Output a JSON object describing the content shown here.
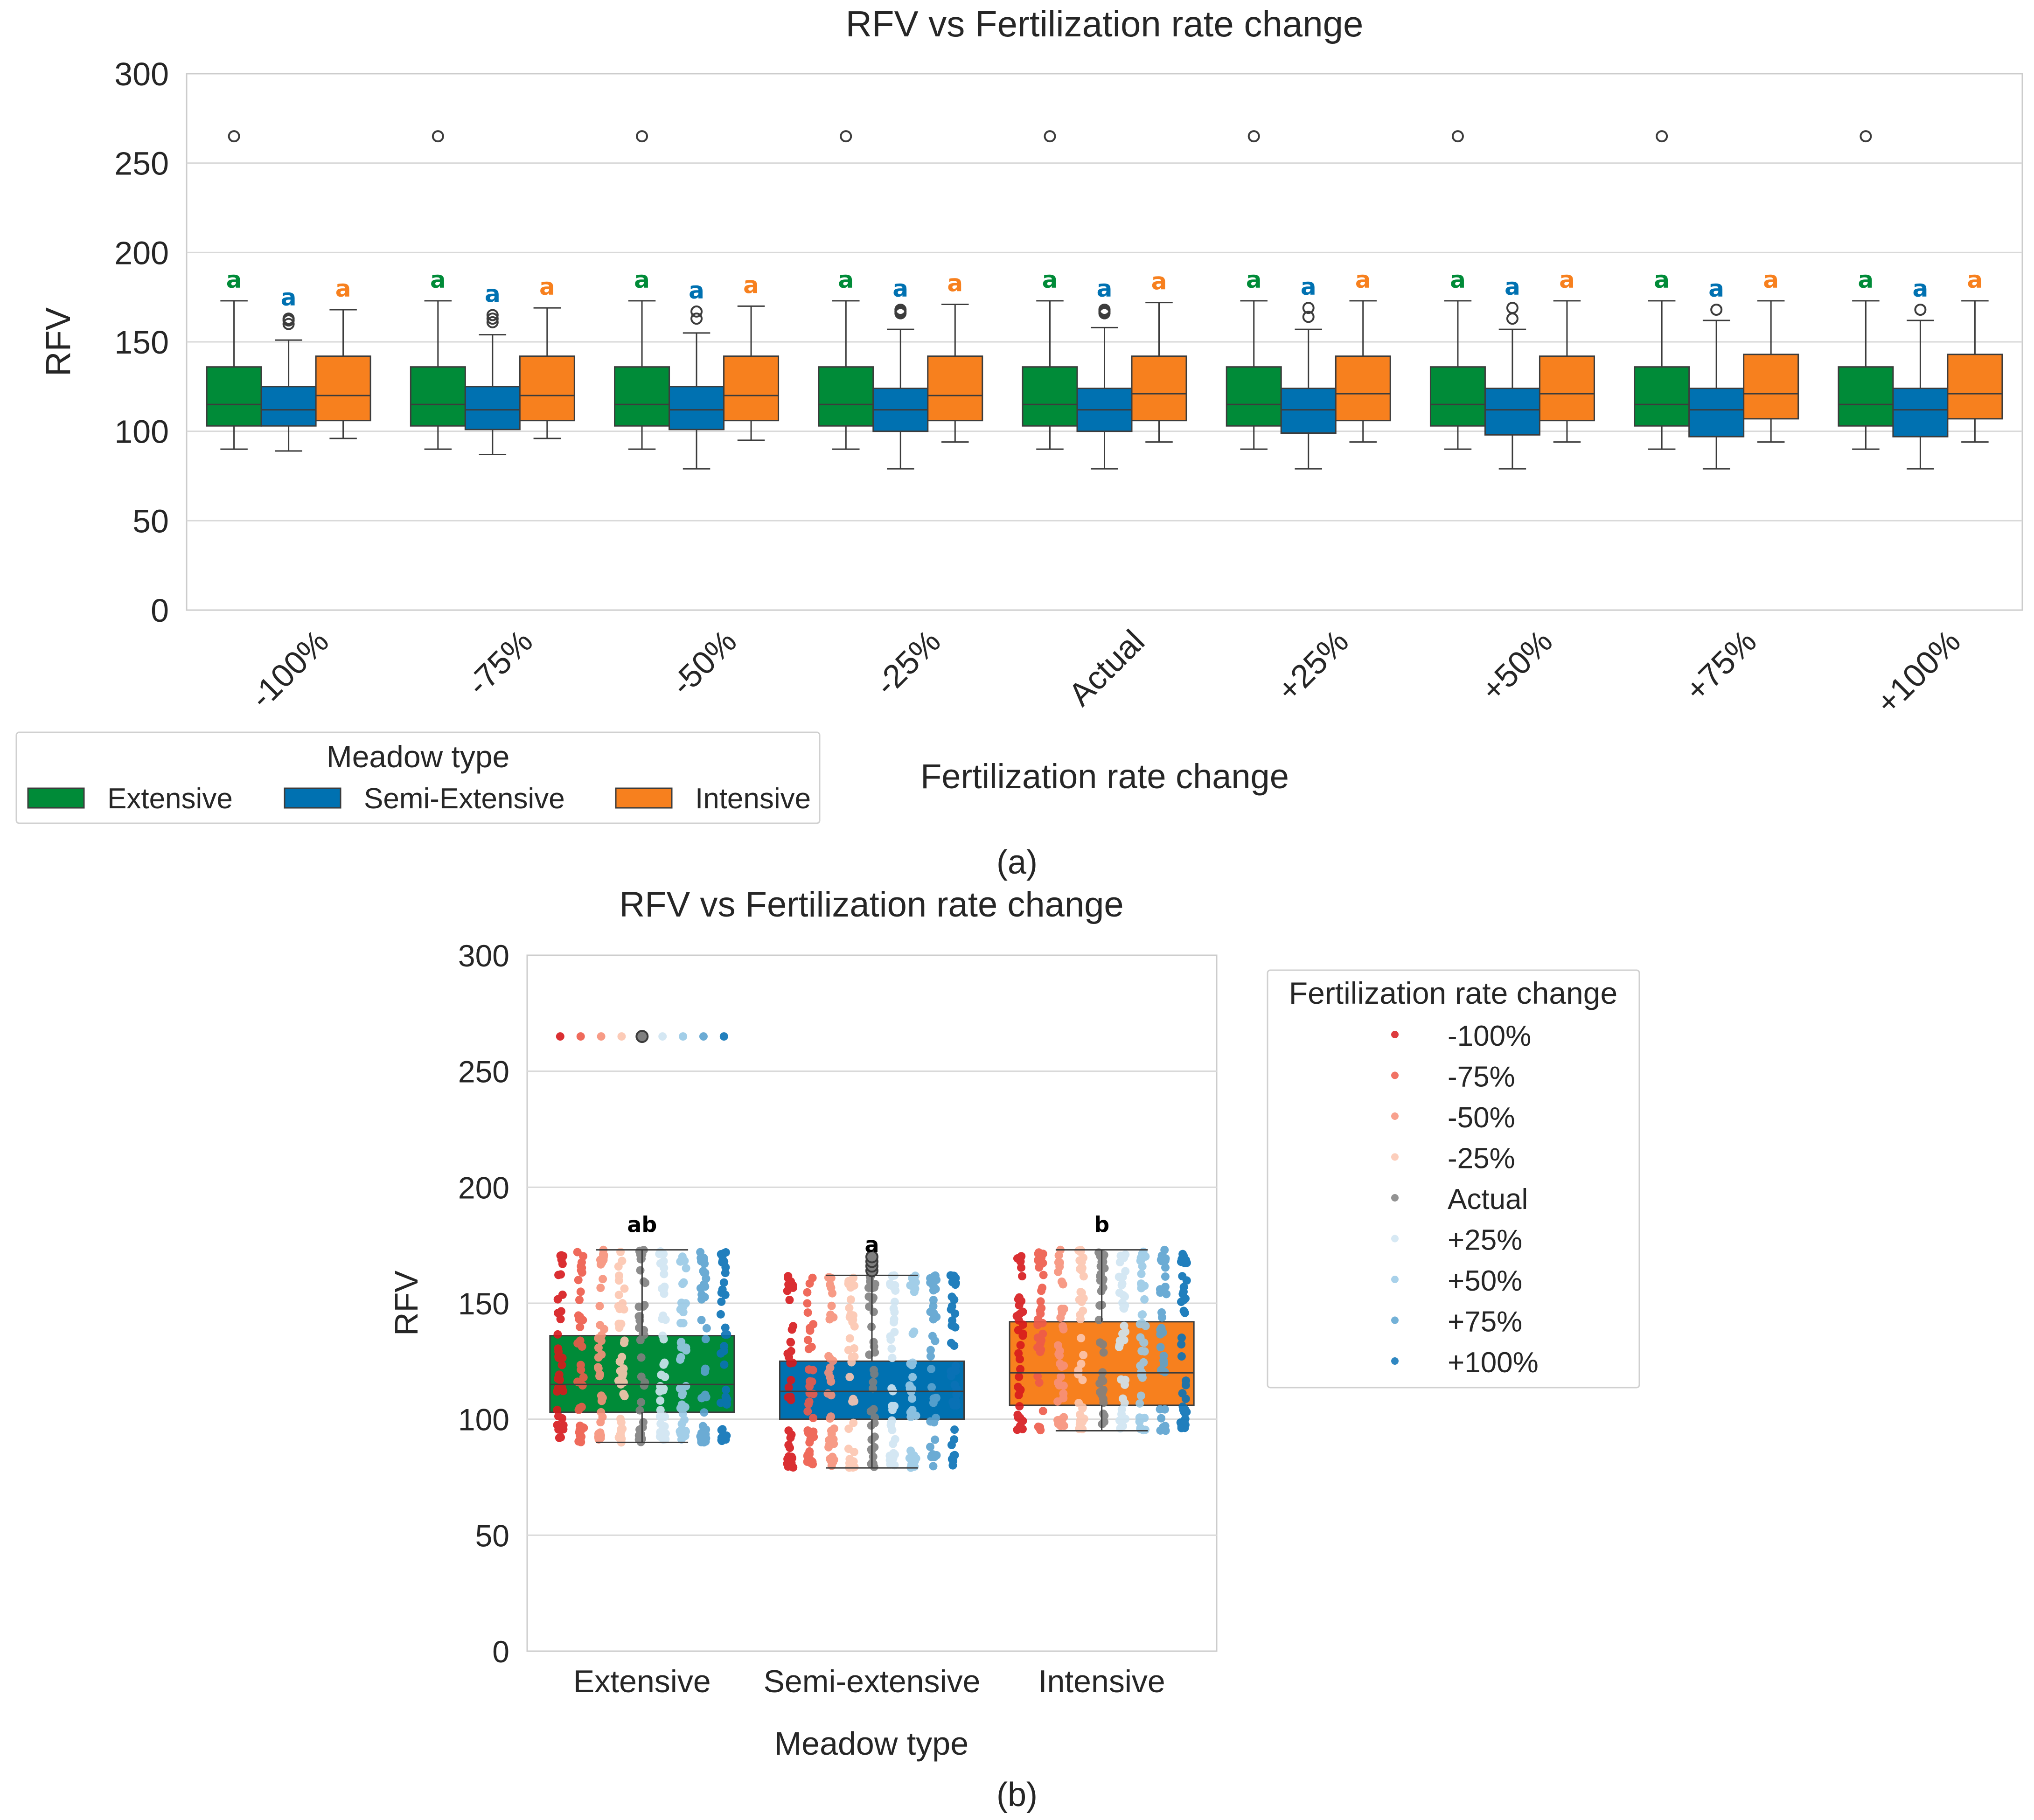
{
  "chart_data": [
    {
      "type": "box",
      "title": "RFV vs Fertilization rate change",
      "xlabel": "Fertilization rate change",
      "ylabel": "RFV",
      "ylim": [
        0,
        300
      ],
      "yticks": [
        0,
        50,
        100,
        150,
        200,
        250,
        300
      ],
      "grid": true,
      "categories": [
        "-100%",
        "-75%",
        "-50%",
        "-25%",
        "Actual",
        "+25%",
        "+50%",
        "+75%",
        "+100%"
      ],
      "legend": {
        "title": "Meadow type",
        "placement": "bottom-left",
        "entries": [
          "Extensive",
          "Semi-Extensive",
          "Intensive"
        ]
      },
      "panel_label": "(a)",
      "series": [
        {
          "name": "Extensive",
          "color": "#008b38",
          "letters": [
            "a",
            "a",
            "a",
            "a",
            "a",
            "a",
            "a",
            "a",
            "a"
          ],
          "stats": [
            {
              "whislo": 90,
              "q1": 103,
              "med": 115,
              "q3": 136,
              "whishi": 173,
              "fliers": [
                265
              ]
            },
            {
              "whislo": 90,
              "q1": 103,
              "med": 115,
              "q3": 136,
              "whishi": 173,
              "fliers": [
                265
              ]
            },
            {
              "whislo": 90,
              "q1": 103,
              "med": 115,
              "q3": 136,
              "whishi": 173,
              "fliers": [
                265
              ]
            },
            {
              "whislo": 90,
              "q1": 103,
              "med": 115,
              "q3": 136,
              "whishi": 173,
              "fliers": [
                265
              ]
            },
            {
              "whislo": 90,
              "q1": 103,
              "med": 115,
              "q3": 136,
              "whishi": 173,
              "fliers": [
                265
              ]
            },
            {
              "whislo": 90,
              "q1": 103,
              "med": 115,
              "q3": 136,
              "whishi": 173,
              "fliers": [
                265
              ]
            },
            {
              "whislo": 90,
              "q1": 103,
              "med": 115,
              "q3": 136,
              "whishi": 173,
              "fliers": [
                265
              ]
            },
            {
              "whislo": 90,
              "q1": 103,
              "med": 115,
              "q3": 136,
              "whishi": 173,
              "fliers": [
                265
              ]
            },
            {
              "whislo": 90,
              "q1": 103,
              "med": 115,
              "q3": 136,
              "whishi": 173,
              "fliers": [
                265
              ]
            }
          ]
        },
        {
          "name": "Semi-Extensive",
          "color": "#0071b1",
          "letters": [
            "a",
            "a",
            "a",
            "a",
            "a",
            "a",
            "a",
            "a",
            "a"
          ],
          "stats": [
            {
              "whislo": 89,
              "q1": 103,
              "med": 112,
              "q3": 125,
              "whishi": 151,
              "fliers": [
                160,
                162,
                163
              ]
            },
            {
              "whislo": 87,
              "q1": 101,
              "med": 112,
              "q3": 125,
              "whishi": 154,
              "fliers": [
                161,
                163,
                165
              ]
            },
            {
              "whislo": 79,
              "q1": 101,
              "med": 112,
              "q3": 125,
              "whishi": 155,
              "fliers": [
                163,
                167
              ]
            },
            {
              "whislo": 79,
              "q1": 100,
              "med": 112,
              "q3": 124,
              "whishi": 157,
              "fliers": [
                166,
                167,
                168
              ]
            },
            {
              "whislo": 79,
              "q1": 100,
              "med": 112,
              "q3": 124,
              "whishi": 158,
              "fliers": [
                166,
                167,
                168
              ]
            },
            {
              "whislo": 79,
              "q1": 99,
              "med": 112,
              "q3": 124,
              "whishi": 157,
              "fliers": [
                164,
                169
              ]
            },
            {
              "whislo": 79,
              "q1": 98,
              "med": 112,
              "q3": 124,
              "whishi": 157,
              "fliers": [
                163,
                169
              ]
            },
            {
              "whislo": 79,
              "q1": 97,
              "med": 112,
              "q3": 124,
              "whishi": 162,
              "fliers": [
                168
              ]
            },
            {
              "whislo": 79,
              "q1": 97,
              "med": 112,
              "q3": 124,
              "whishi": 162,
              "fliers": [
                168
              ]
            }
          ]
        },
        {
          "name": "Intensive",
          "color": "#f7801e",
          "letters": [
            "a",
            "a",
            "a",
            "a",
            "a",
            "a",
            "a",
            "a",
            "a"
          ],
          "stats": [
            {
              "whislo": 96,
              "q1": 106,
              "med": 120,
              "q3": 142,
              "whishi": 168,
              "fliers": []
            },
            {
              "whislo": 96,
              "q1": 106,
              "med": 120,
              "q3": 142,
              "whishi": 169,
              "fliers": []
            },
            {
              "whislo": 95,
              "q1": 106,
              "med": 120,
              "q3": 142,
              "whishi": 170,
              "fliers": []
            },
            {
              "whislo": 94,
              "q1": 106,
              "med": 120,
              "q3": 142,
              "whishi": 171,
              "fliers": []
            },
            {
              "whislo": 94,
              "q1": 106,
              "med": 121,
              "q3": 142,
              "whishi": 172,
              "fliers": []
            },
            {
              "whislo": 94,
              "q1": 106,
              "med": 121,
              "q3": 142,
              "whishi": 173,
              "fliers": []
            },
            {
              "whislo": 94,
              "q1": 106,
              "med": 121,
              "q3": 142,
              "whishi": 173,
              "fliers": []
            },
            {
              "whislo": 94,
              "q1": 107,
              "med": 121,
              "q3": 143,
              "whishi": 173,
              "fliers": []
            },
            {
              "whislo": 94,
              "q1": 107,
              "med": 121,
              "q3": 143,
              "whishi": 173,
              "fliers": []
            }
          ]
        }
      ]
    },
    {
      "type": "box",
      "title": "RFV vs Fertilization rate change",
      "xlabel": "Meadow type",
      "ylabel": "RFV",
      "ylim": [
        0,
        300
      ],
      "yticks": [
        0,
        50,
        100,
        150,
        200,
        250,
        300
      ],
      "grid": true,
      "categories": [
        "Extensive",
        "Semi-extensive",
        "Intensive"
      ],
      "panel_label": "(b)",
      "boxes": [
        {
          "name": "Extensive",
          "color": "#008b38",
          "letter": "ab",
          "whislo": 90,
          "q1": 103,
          "med": 115,
          "q3": 136,
          "whishi": 173,
          "fliers": [
            265
          ]
        },
        {
          "name": "Semi-extensive",
          "color": "#0071b1",
          "letter": "a",
          "whislo": 79,
          "q1": 100,
          "med": 112,
          "q3": 125,
          "whishi": 162,
          "fliers": [
            164,
            166,
            168,
            170
          ]
        },
        {
          "name": "Intensive",
          "color": "#f7801e",
          "letter": "b",
          "whislo": 95,
          "q1": 106,
          "med": 120,
          "q3": 142,
          "whishi": 173,
          "fliers": []
        }
      ],
      "strip_overlay": {
        "hue": "Fertilization rate change",
        "levels": [
          "-100%",
          "-75%",
          "-50%",
          "-25%",
          "Actual",
          "+25%",
          "+50%",
          "+75%",
          "+100%"
        ],
        "colors": [
          "#d7191c",
          "#ee5a4a",
          "#f7917a",
          "#fcc6b0",
          "#808080",
          "#d0e5f2",
          "#99c9e6",
          "#5ba3d0",
          "#0a72b6"
        ]
      },
      "legend": {
        "title": "Fertilization rate change",
        "placement": "outside-right",
        "entries": [
          "-100%",
          "-75%",
          "-50%",
          "-25%",
          "Actual",
          "+25%",
          "+50%",
          "+75%",
          "+100%"
        ]
      }
    }
  ]
}
